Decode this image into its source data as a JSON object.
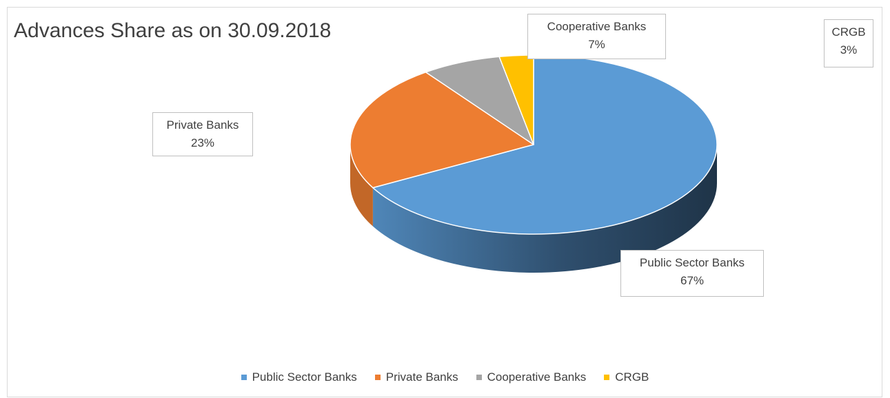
{
  "chart_data": {
    "type": "pie",
    "title": "Advances Share as on 30.09.2018",
    "categories": [
      "Public Sector Banks",
      "Private Banks",
      "Cooperative Banks",
      "CRGB"
    ],
    "values": [
      67,
      23,
      7,
      3
    ],
    "unit": "%",
    "colors": [
      "#5B9BD5",
      "#ED7D31",
      "#A5A5A5",
      "#FFC000"
    ],
    "data_labels": [
      {
        "name": "Public Sector Banks",
        "value": "67%"
      },
      {
        "name": "Private Banks",
        "value": "23%"
      },
      {
        "name": "Cooperative Banks",
        "value": "7%"
      },
      {
        "name": "CRGB",
        "value": "3%"
      }
    ],
    "legend": {
      "position": "bottom",
      "entries": [
        "Public Sector Banks",
        "Private Banks",
        "Cooperative Banks",
        "CRGB"
      ]
    },
    "style": "3d"
  }
}
